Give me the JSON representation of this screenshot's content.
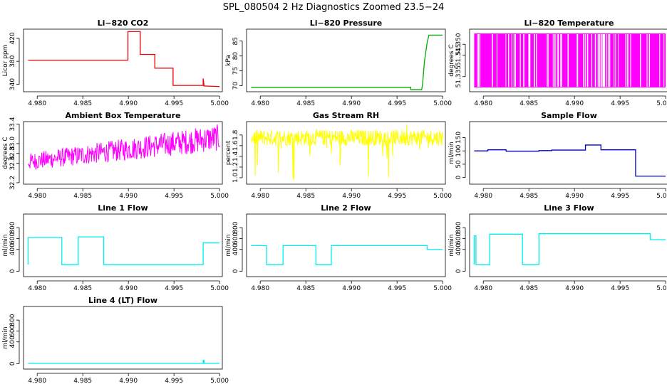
{
  "figure": {
    "title": "SPL_080504  2 Hz Diagnostics Zoomed 23.5−24"
  },
  "chart_data": [
    {
      "type": "line",
      "title": "Li−820 CO2",
      "ylabel": "Licor ppm",
      "color": "#ee0000",
      "xlim": [
        4.9785,
        5.0003
      ],
      "ylim": [
        327,
        436
      ],
      "xticks": [
        "4.980",
        "4.985",
        "4.990",
        "4.995",
        "5.000"
      ],
      "xtick_values": [
        4.98,
        4.985,
        4.99,
        4.995,
        5.0
      ],
      "yticks": [
        "340",
        "380",
        "420"
      ],
      "ytick_values": [
        340,
        380,
        420
      ],
      "series": [
        {
          "x": [
            4.979,
            4.985,
            4.98995,
            4.98995,
            4.9913,
            4.9913,
            4.9929,
            4.9929,
            4.9949,
            4.9949,
            4.9982,
            4.9982,
            4.9983,
            4.9983,
            5.0
          ],
          "y": [
            382,
            382,
            382,
            432,
            432,
            392,
            392,
            368,
            368,
            338,
            338,
            350,
            337,
            337,
            336
          ]
        }
      ]
    },
    {
      "type": "line",
      "title": "Li−820 Pressure",
      "ylabel": "kPa",
      "color": "#00aa00",
      "xlim": [
        4.9785,
        5.0003
      ],
      "ylim": [
        68,
        89
      ],
      "xticks": [
        "4.980",
        "4.985",
        "4.990",
        "4.995",
        "5.000"
      ],
      "xtick_values": [
        4.98,
        4.985,
        4.99,
        4.995,
        5.0
      ],
      "yticks": [
        "70",
        "75",
        "80",
        "85"
      ],
      "ytick_values": [
        70,
        75,
        80,
        85
      ],
      "series": [
        {
          "x": [
            4.979,
            4.9965,
            4.9965,
            4.9977,
            4.9978,
            4.998,
            4.9983,
            4.9985,
            5.0
          ],
          "y": [
            69.5,
            69.5,
            68.7,
            68.7,
            70.5,
            78,
            84.5,
            87,
            87
          ]
        }
      ]
    },
    {
      "type": "bar",
      "title": "Li−820 Temperature",
      "ylabel": "degrees C",
      "color": "#ff00ff",
      "xlim": [
        4.9785,
        5.0003
      ],
      "ylim": [
        51.328,
        51.357
      ],
      "xticks": [
        "4.980",
        "4.985",
        "4.990",
        "4.995",
        "5.000"
      ],
      "xtick_values": [
        4.98,
        4.985,
        4.99,
        4.995,
        5.0
      ],
      "yticks": [
        "51.335",
        "51.345",
        "51.350"
      ],
      "ytick_values": [
        51.335,
        51.345,
        51.35
      ],
      "levels": [
        51.33,
        51.355
      ]
    },
    {
      "type": "line",
      "title": "Ambient Box Temperature",
      "ylabel": "degrees C",
      "color": "#ff00ff",
      "xlim": [
        4.9785,
        5.0003
      ],
      "ylim": [
        32.17,
        33.45
      ],
      "xticks": [
        "4.980",
        "4.985",
        "4.990",
        "4.995",
        "5.000"
      ],
      "xtick_values": [
        4.98,
        4.985,
        4.99,
        4.995,
        5.0
      ],
      "yticks": [
        "32.2",
        "32.6",
        "32.8",
        "33.0",
        "33.4"
      ],
      "ytick_values": [
        32.2,
        32.6,
        32.8,
        33.0,
        33.4
      ],
      "band": {
        "start": [
          32.6,
          32.45,
          32.8
        ],
        "end": [
          33.1,
          32.85,
          33.4
        ]
      }
    },
    {
      "type": "line",
      "title": "Gas Stream RH",
      "ylabel": "percent",
      "color": "#ffff00",
      "xlim": [
        4.9785,
        5.0003
      ],
      "ylim": [
        0.88,
        2.05
      ],
      "xticks": [
        "4.980",
        "4.985",
        "4.990",
        "4.995",
        "5.000"
      ],
      "xtick_values": [
        4.98,
        4.985,
        4.99,
        4.995,
        5.0
      ],
      "yticks": [
        "1.0",
        "1.2",
        "1.4",
        "1.6",
        "1.8"
      ],
      "ytick_values": [
        1.0,
        1.2,
        1.4,
        1.6,
        1.8
      ],
      "band": {
        "center": 1.75,
        "low": 1.6,
        "high": 1.9,
        "min": 0.95,
        "max": 2.0
      }
    },
    {
      "type": "line",
      "title": "Sample Flow",
      "ylabel": "ml/min",
      "color": "#0000cc",
      "xlim": [
        4.9785,
        5.0003
      ],
      "ylim": [
        -25,
        210
      ],
      "xticks": [
        "4.980",
        "4.985",
        "4.990",
        "4.995",
        "5.000"
      ],
      "xtick_values": [
        4.98,
        4.985,
        4.99,
        4.995,
        5.0
      ],
      "yticks": [
        "0",
        "50",
        "100",
        "150"
      ],
      "ytick_values": [
        0,
        50,
        100,
        150
      ],
      "series": [
        {
          "x": [
            4.979,
            4.9805,
            4.9805,
            4.9825,
            4.9825,
            4.9861,
            4.9861,
            4.9875,
            4.9875,
            4.9912,
            4.9912,
            4.9929,
            4.9929,
            4.9967,
            4.9967,
            5.0
          ],
          "y": [
            100,
            100,
            104,
            104,
            99,
            99,
            101,
            101,
            103,
            103,
            122,
            122,
            104,
            104,
            5,
            5
          ]
        }
      ]
    },
    {
      "type": "line",
      "title": "Line 1 Flow",
      "ylabel": "ml/min",
      "color": "#00eeee",
      "xlim": [
        4.9785,
        5.0003
      ],
      "ylim": [
        -100,
        1050
      ],
      "xticks": [
        "4.980",
        "4.985",
        "4.990",
        "4.995",
        "5.000"
      ],
      "xtick_values": [
        4.98,
        4.985,
        4.99,
        4.995,
        5.0
      ],
      "yticks": [
        "0",
        "400",
        "600",
        "800"
      ],
      "ytick_values": [
        0,
        400,
        600,
        800
      ],
      "series": [
        {
          "x": [
            4.979,
            4.979,
            4.9827,
            4.9827,
            4.9845,
            4.9845,
            4.9873,
            4.9873,
            4.9982,
            4.9982,
            5.0
          ],
          "y": [
            120,
            620,
            620,
            120,
            120,
            630,
            630,
            120,
            120,
            520,
            520
          ]
        }
      ]
    },
    {
      "type": "line",
      "title": "Line 2 Flow",
      "ylabel": "ml/min",
      "color": "#00eeee",
      "xlim": [
        4.9785,
        5.0003
      ],
      "ylim": [
        -100,
        1050
      ],
      "xticks": [
        "4.980",
        "4.985",
        "4.990",
        "4.995",
        "5.000"
      ],
      "xtick_values": [
        4.98,
        4.985,
        4.99,
        4.995,
        5.0
      ],
      "yticks": [
        "0",
        "400",
        "600",
        "800"
      ],
      "ytick_values": [
        0,
        400,
        600,
        800
      ],
      "series": [
        {
          "x": [
            4.979,
            4.9807,
            4.9807,
            4.9825,
            4.9825,
            4.9861,
            4.9861,
            4.9878,
            4.9878,
            4.9983,
            4.9983,
            5.0
          ],
          "y": [
            470,
            470,
            120,
            120,
            470,
            470,
            120,
            120,
            470,
            470,
            400,
            400
          ]
        }
      ]
    },
    {
      "type": "line",
      "title": "Line 3 Flow",
      "ylabel": "ml/min",
      "color": "#00eeee",
      "xlim": [
        4.9785,
        5.0003
      ],
      "ylim": [
        -100,
        1050
      ],
      "xticks": [
        "4.980",
        "4.985",
        "4.990",
        "4.995",
        "5.000"
      ],
      "xtick_values": [
        4.98,
        4.985,
        4.99,
        4.995,
        5.0
      ],
      "yticks": [
        "0",
        "400",
        "600",
        "800"
      ],
      "ytick_values": [
        0,
        400,
        600,
        800
      ],
      "series": [
        {
          "x": [
            4.979,
            4.979,
            4.9792,
            4.9792,
            4.9807,
            4.9807,
            4.9843,
            4.9843,
            4.9861,
            4.9861,
            4.9983,
            4.9983,
            5.0
          ],
          "y": [
            120,
            650,
            650,
            120,
            120,
            680,
            680,
            120,
            120,
            690,
            690,
            580,
            580
          ]
        }
      ]
    },
    {
      "type": "line",
      "title": "Line 4 (LT) Flow",
      "ylabel": "ml/min",
      "color": "#00eeee",
      "xlim": [
        4.9785,
        5.0003
      ],
      "ylim": [
        -100,
        1050
      ],
      "xticks": [
        "4.980",
        "4.985",
        "4.990",
        "4.995",
        "5.000"
      ],
      "xtick_values": [
        4.98,
        4.985,
        4.99,
        4.995,
        5.0
      ],
      "yticks": [
        "0",
        "400",
        "600",
        "800"
      ],
      "ytick_values": [
        0,
        400,
        600,
        800
      ],
      "series": [
        {
          "x": [
            4.979,
            4.9982,
            4.9982,
            4.9983,
            4.9983,
            5.0
          ],
          "y": [
            5,
            5,
            60,
            60,
            5,
            5
          ]
        }
      ]
    }
  ]
}
